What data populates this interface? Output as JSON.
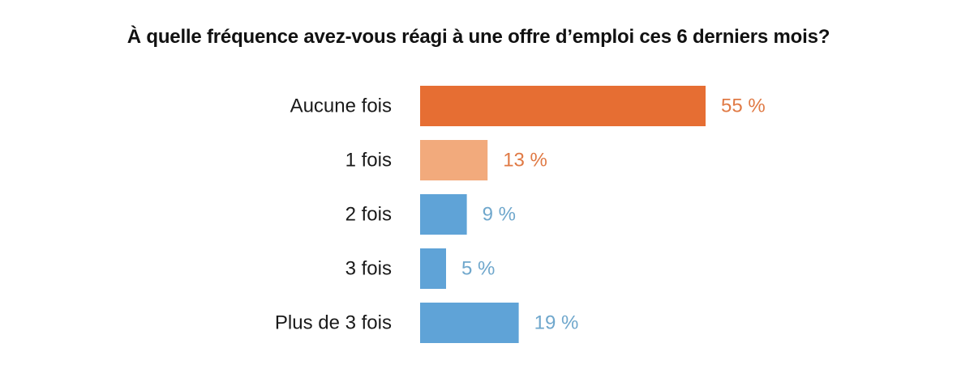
{
  "chart_data": {
    "type": "bar",
    "orientation": "horizontal",
    "title": "À quelle fréquence avez-vous réagi à une offre d’emploi ces 6 derniers mois?",
    "categories": [
      "Aucune fois",
      "1 fois",
      "2 fois",
      "3 fois",
      "Plus de 3 fois"
    ],
    "values": [
      55,
      13,
      9,
      5,
      19
    ],
    "value_labels": [
      "55 %",
      "13 %",
      "9 %",
      "5 %",
      "19 %"
    ],
    "unit": "%",
    "xlim": [
      0,
      55
    ],
    "grid": false,
    "legend": "none",
    "bar_colors": [
      "#E66E33",
      "#F2AA7C",
      "#5FA3D7",
      "#5FA3D7",
      "#5FA3D7"
    ],
    "label_colors": [
      "#E07A45",
      "#E07A45",
      "#6FA7CC",
      "#6FA7CC",
      "#6FA7CC"
    ]
  }
}
